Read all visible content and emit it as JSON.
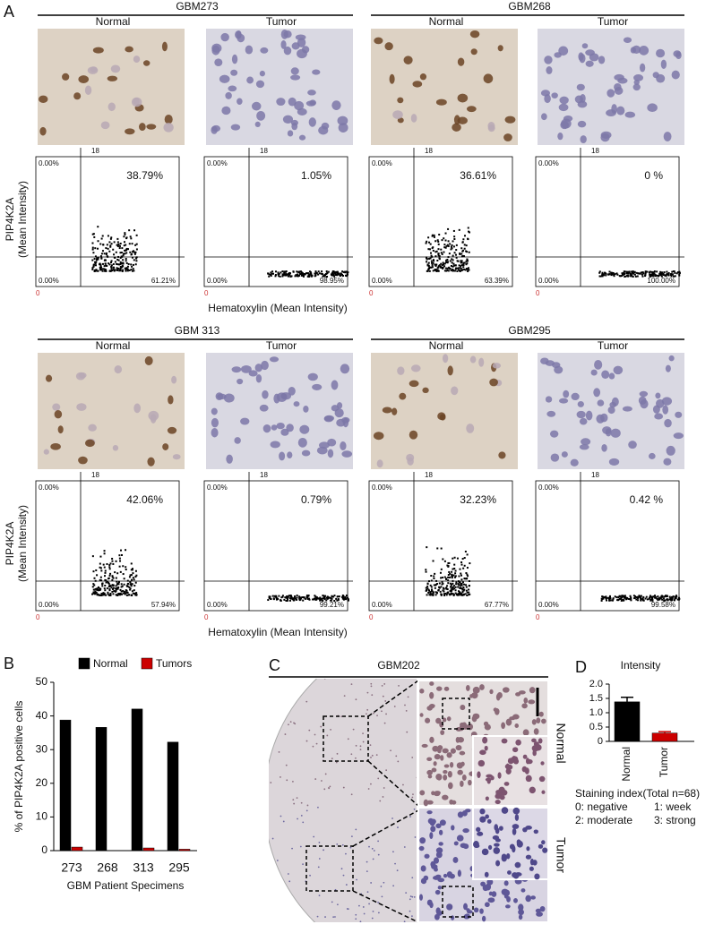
{
  "panel_a": {
    "label": "A",
    "y_axis_label": "PIP4K2A",
    "y_axis_sublabel": "(Mean Intensity)",
    "x_axis_label": "Hematoxylin (Mean Intensity)",
    "threshold_label": "18",
    "origin_label": "0",
    "rows": [
      {
        "groups": [
          {
            "title": "GBM273",
            "plots": [
              {
                "condition": "Normal",
                "upper_left": "0.00%",
                "upper_right": "38.79%",
                "lower_left": "0.00%",
                "lower_right": "61.21%"
              },
              {
                "condition": "Tumor",
                "upper_left": "0.00%",
                "upper_right": "1.05%",
                "lower_left": "0.00%",
                "lower_right": "98.95%"
              }
            ]
          },
          {
            "title": "GBM268",
            "plots": [
              {
                "condition": "Normal",
                "upper_left": "0.00%",
                "upper_right": "36.61%",
                "lower_left": "0.00%",
                "lower_right": "63.39%"
              },
              {
                "condition": "Tumor",
                "upper_left": "0.00%",
                "upper_right": "0 %",
                "lower_left": "0.00%",
                "lower_right": "100.00%"
              }
            ]
          }
        ]
      },
      {
        "groups": [
          {
            "title": "GBM 313",
            "plots": [
              {
                "condition": "Normal",
                "upper_left": "0.00%",
                "upper_right": "42.06%",
                "lower_left": "0.00%",
                "lower_right": "57.94%"
              },
              {
                "condition": "Tumor",
                "upper_left": "0.00%",
                "upper_right": "0.79%",
                "lower_left": "0.00%",
                "lower_right": "99.21%"
              }
            ]
          },
          {
            "title": "GBM295",
            "plots": [
              {
                "condition": "Normal",
                "upper_left": "0.00%",
                "upper_right": "32.23%",
                "lower_left": "0.00%",
                "lower_right": "67.77%"
              },
              {
                "condition": "Tumor",
                "upper_left": "0.00%",
                "upper_right": "0.42 %",
                "lower_left": "0.00%",
                "lower_right": "99.58%"
              }
            ]
          }
        ]
      }
    ]
  },
  "panel_c": {
    "label": "C",
    "title": "GBM202",
    "upper_label": "Normal",
    "lower_label": "Tumor"
  },
  "chart_data": [
    {
      "type": "bar",
      "panel": "B",
      "categories": [
        "273",
        "268",
        "313",
        "295"
      ],
      "series": [
        {
          "name": "Normal",
          "color": "#000000",
          "values": [
            38.79,
            36.61,
            42.06,
            32.23
          ]
        },
        {
          "name": "Tumors",
          "color": "#cc0000",
          "values": [
            1.05,
            0,
            0.79,
            0.42
          ]
        }
      ],
      "y_label": "% of PIP4K2A positive cells",
      "x_label": "GBM Patient Specimens",
      "ylim": [
        0,
        50
      ],
      "yticks": [
        0,
        10,
        20,
        30,
        40,
        50
      ],
      "legend": "top"
    },
    {
      "type": "bar",
      "panel": "D",
      "title": "Intensity",
      "categories": [
        "Normal",
        "Tumor"
      ],
      "values": [
        1.38,
        0.29
      ],
      "errors": [
        0.16,
        0.05
      ],
      "colors": [
        "#000000",
        "#cc0000"
      ],
      "ylim": [
        0,
        2.0
      ],
      "yticks": [
        0,
        0.5,
        {
          "value": 1,
          "label": "1.0"
        },
        1.5,
        {
          "value": 2,
          "label": "2.0"
        }
      ],
      "notes": [
        "Staining index(Total n=68)",
        "0: negative",
        "1: week",
        "2: moderate",
        "3: strong"
      ]
    }
  ]
}
